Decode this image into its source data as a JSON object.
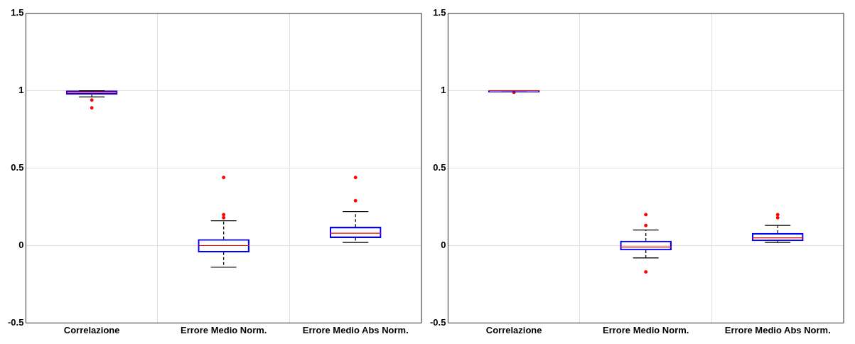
{
  "chart_data": [
    {
      "type": "box",
      "categories": [
        "Correlazione",
        "Errore Medio Norm.",
        "Errore Medio Abs Norm."
      ],
      "color": "#0000ff",
      "boxes": [
        {
          "low": 0.96,
          "q1": 0.977,
          "median": 0.99,
          "q3": 1.0,
          "high": 1.0,
          "outliers": [
            0.94,
            0.89
          ]
        },
        {
          "low": -0.14,
          "q1": -0.043,
          "median": 0,
          "q3": 0.04,
          "high": 0.16,
          "outliers": [
            0.44,
            0.2,
            0.18
          ]
        },
        {
          "low": 0.02,
          "q1": 0.05,
          "median": 0.08,
          "q3": 0.12,
          "high": 0.22,
          "outliers": [
            0.44,
            0.29
          ]
        }
      ],
      "ylim": [
        -0.5,
        1.5
      ],
      "yticks": [
        -0.5,
        0,
        0.5,
        1,
        1.5
      ],
      "grid": true
    },
    {
      "type": "box",
      "categories": [
        "Correlazione",
        "Errore Medio Norm.",
        "Errore Medio Abs Norm."
      ],
      "color": "#0000ff",
      "boxes": [
        {
          "low": 1,
          "q1": 1,
          "median": 1,
          "q3": 1,
          "high": 1,
          "outliers": [
            0.99
          ]
        },
        {
          "low": -0.08,
          "q1": -0.03,
          "median": -0.01,
          "q3": 0.03,
          "high": 0.1,
          "outliers": [
            0.2,
            0.13,
            -0.17
          ]
        },
        {
          "low": 0.02,
          "q1": 0.03,
          "median": 0.05,
          "q3": 0.08,
          "high": 0.13,
          "outliers": [
            0.2,
            0.18
          ]
        }
      ],
      "ylim": [
        -0.5,
        1.5
      ],
      "yticks": [
        -0.5,
        0,
        0.5,
        1,
        1.5
      ],
      "grid": true
    }
  ]
}
